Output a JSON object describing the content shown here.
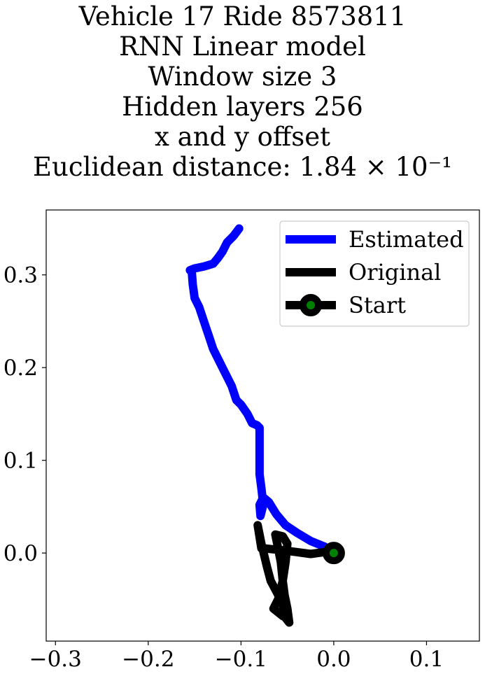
{
  "chart_data": {
    "type": "line",
    "title_lines": [
      "Vehicle 17 Ride 8573811",
      "RNN Linear model",
      "Window size 3",
      "Hidden layers 256",
      "x and y offset",
      "Euclidean distance: 1.84 × 10⁻¹"
    ],
    "xlim": [
      -0.31,
      0.157
    ],
    "ylim": [
      -0.095,
      0.37
    ],
    "xticks": [
      -0.3,
      -0.2,
      -0.1,
      0.0,
      0.1
    ],
    "xtick_labels": [
      "−0.3",
      "−0.2",
      "−0.1",
      "0.0",
      "0.1"
    ],
    "yticks": [
      0.0,
      0.1,
      0.2,
      0.3
    ],
    "ytick_labels": [
      "0.0",
      "0.1",
      "0.2",
      "0.3"
    ],
    "grid": false,
    "legend_position": "top-right",
    "series": [
      {
        "name": "Estimated",
        "color": "#0000ff",
        "points": [
          [
            0.0,
            0.0
          ],
          [
            -0.01,
            0.007
          ],
          [
            -0.025,
            0.013
          ],
          [
            -0.04,
            0.022
          ],
          [
            -0.052,
            0.03
          ],
          [
            -0.062,
            0.042
          ],
          [
            -0.07,
            0.055
          ],
          [
            -0.076,
            0.06
          ],
          [
            -0.08,
            0.052
          ],
          [
            -0.079,
            0.04
          ],
          [
            -0.076,
            0.052
          ],
          [
            -0.078,
            0.07
          ],
          [
            -0.08,
            0.085
          ],
          [
            -0.08,
            0.1
          ],
          [
            -0.08,
            0.12
          ],
          [
            -0.08,
            0.135
          ],
          [
            -0.083,
            0.138
          ],
          [
            -0.088,
            0.14
          ],
          [
            -0.093,
            0.15
          ],
          [
            -0.1,
            0.16
          ],
          [
            -0.105,
            0.165
          ],
          [
            -0.11,
            0.18
          ],
          [
            -0.115,
            0.19
          ],
          [
            -0.12,
            0.2
          ],
          [
            -0.13,
            0.22
          ],
          [
            -0.135,
            0.235
          ],
          [
            -0.14,
            0.25
          ],
          [
            -0.145,
            0.265
          ],
          [
            -0.15,
            0.275
          ],
          [
            -0.152,
            0.29
          ],
          [
            -0.153,
            0.303
          ],
          [
            -0.155,
            0.305
          ],
          [
            -0.15,
            0.307
          ],
          [
            -0.14,
            0.309
          ],
          [
            -0.13,
            0.312
          ],
          [
            -0.125,
            0.318
          ],
          [
            -0.12,
            0.325
          ],
          [
            -0.115,
            0.335
          ],
          [
            -0.108,
            0.342
          ],
          [
            -0.102,
            0.35
          ]
        ]
      },
      {
        "name": "Original",
        "color": "#000000",
        "points": [
          [
            0.0,
            0.0
          ],
          [
            -0.01,
            0.001
          ],
          [
            -0.025,
            -0.001
          ],
          [
            -0.04,
            0.001
          ],
          [
            -0.055,
            0.003
          ],
          [
            -0.075,
            0.005
          ],
          [
            -0.078,
            0.005
          ],
          [
            -0.082,
            0.03
          ],
          [
            -0.078,
            0.01
          ],
          [
            -0.072,
            -0.015
          ],
          [
            -0.068,
            -0.03
          ],
          [
            -0.06,
            -0.045
          ],
          [
            -0.055,
            -0.055
          ],
          [
            -0.052,
            -0.07
          ],
          [
            -0.048,
            -0.075
          ],
          [
            -0.05,
            -0.06
          ],
          [
            -0.053,
            -0.045
          ],
          [
            -0.055,
            -0.03
          ],
          [
            -0.057,
            -0.01
          ],
          [
            -0.06,
            0.005
          ],
          [
            -0.063,
            0.02
          ],
          [
            -0.055,
            0.018
          ],
          [
            -0.05,
            0.01
          ],
          [
            -0.052,
            -0.01
          ],
          [
            -0.055,
            -0.03
          ],
          [
            -0.06,
            -0.05
          ],
          [
            -0.065,
            -0.06
          ],
          [
            -0.055,
            -0.068
          ],
          [
            -0.05,
            -0.07
          ]
        ]
      }
    ],
    "start": {
      "name": "Start",
      "x": 0.0,
      "y": 0.0,
      "marker_color": "#008000",
      "ring_color": "#000000"
    }
  }
}
